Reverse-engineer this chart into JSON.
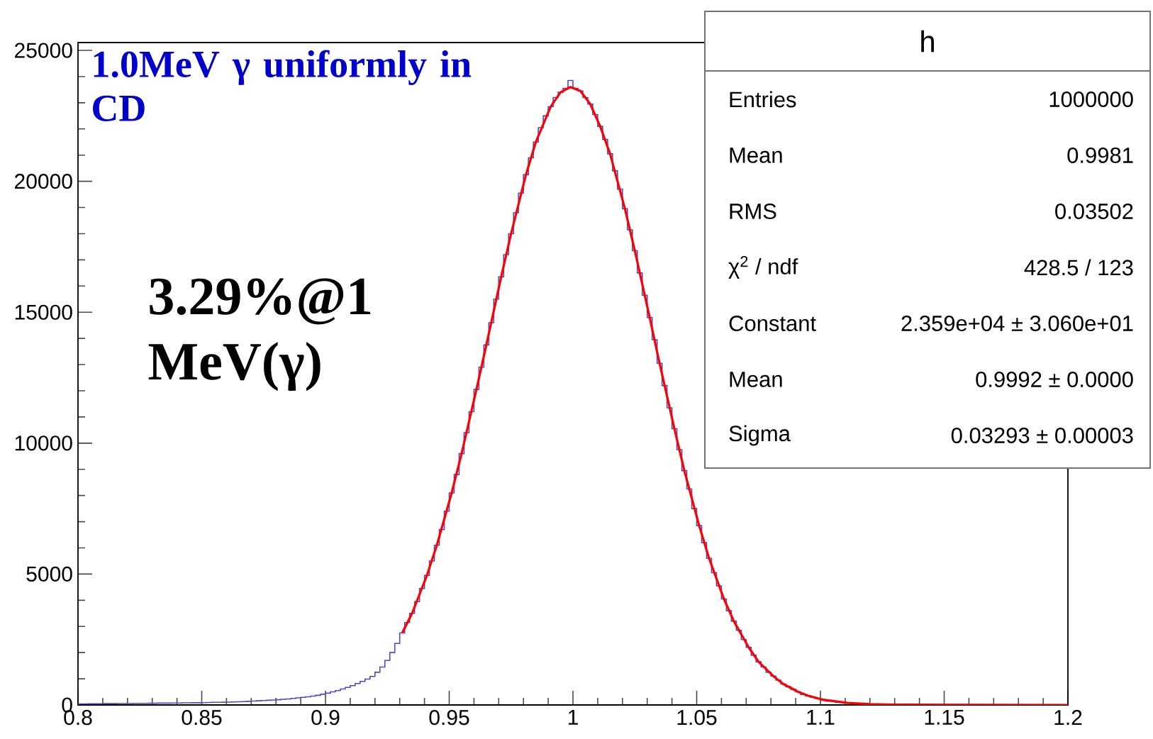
{
  "chart_data": {
    "type": "histogram",
    "title": "1.0MeV γ uniformly in CD",
    "color": "#4b4bc4",
    "bins": [
      0.8,
      0.802,
      0.804,
      0.806,
      0.808,
      0.81,
      0.812,
      0.814,
      0.816,
      0.818,
      0.82,
      0.822,
      0.824,
      0.826,
      0.828,
      0.83,
      0.832,
      0.834,
      0.836,
      0.838,
      0.84,
      0.842,
      0.844,
      0.846,
      0.848,
      0.85,
      0.852,
      0.854,
      0.856,
      0.858,
      0.86,
      0.862,
      0.864,
      0.866,
      0.868,
      0.87,
      0.872,
      0.874,
      0.876,
      0.878,
      0.88,
      0.882,
      0.884,
      0.886,
      0.888,
      0.89,
      0.892,
      0.894,
      0.896,
      0.898,
      0.9,
      0.902,
      0.904,
      0.906,
      0.908,
      0.91,
      0.912,
      0.914,
      0.916,
      0.918,
      0.92,
      0.922,
      0.924,
      0.926,
      0.928,
      0.93,
      0.932,
      0.934,
      0.936,
      0.938,
      0.94,
      0.942,
      0.944,
      0.946,
      0.948,
      0.95,
      0.952,
      0.954,
      0.956,
      0.958,
      0.96,
      0.962,
      0.964,
      0.966,
      0.968,
      0.97,
      0.972,
      0.974,
      0.976,
      0.978,
      0.98,
      0.982,
      0.984,
      0.986,
      0.988,
      0.99,
      0.992,
      0.994,
      0.996,
      0.998,
      1.0,
      1.002,
      1.004,
      1.006,
      1.008,
      1.01,
      1.012,
      1.014,
      1.016,
      1.018,
      1.02,
      1.022,
      1.024,
      1.026,
      1.028,
      1.03,
      1.032,
      1.034,
      1.036,
      1.038,
      1.04,
      1.042,
      1.044,
      1.046,
      1.048,
      1.05,
      1.052,
      1.054,
      1.056,
      1.058,
      1.06,
      1.062,
      1.064,
      1.066,
      1.068,
      1.07,
      1.072,
      1.074,
      1.076,
      1.078,
      1.08,
      1.082,
      1.084,
      1.086,
      1.088,
      1.09,
      1.092,
      1.094,
      1.096,
      1.098,
      1.1,
      1.102,
      1.104,
      1.106,
      1.108,
      1.11,
      1.112,
      1.114,
      1.116,
      1.118,
      1.12,
      1.122,
      1.124,
      1.126,
      1.128,
      1.13,
      1.132,
      1.134,
      1.136,
      1.138,
      1.14,
      1.142,
      1.144,
      1.146,
      1.148,
      1.15,
      1.152,
      1.154,
      1.156,
      1.158,
      1.16,
      1.162,
      1.164,
      1.166,
      1.168,
      1.17,
      1.172,
      1.174,
      1.176,
      1.178,
      1.18,
      1.182,
      1.184,
      1.186,
      1.188,
      1.19,
      1.192,
      1.194,
      1.196,
      1.198,
      1.2
    ],
    "values": [
      40,
      40,
      45,
      45,
      45,
      50,
      50,
      50,
      55,
      55,
      55,
      60,
      60,
      60,
      65,
      65,
      70,
      70,
      70,
      75,
      75,
      80,
      80,
      85,
      85,
      90,
      95,
      100,
      100,
      105,
      110,
      115,
      120,
      130,
      140,
      150,
      160,
      170,
      180,
      190,
      200,
      215,
      230,
      250,
      270,
      290,
      310,
      340,
      370,
      410,
      450,
      500,
      550,
      610,
      670,
      740,
      820,
      900,
      990,
      1090,
      1250,
      1450,
      1700,
      2000,
      2350,
      2750,
      3150,
      3500,
      3950,
      4450,
      4950,
      5500,
      6100,
      6700,
      7400,
      8100,
      8800,
      9600,
      10400,
      11200,
      12050,
      12900,
      13750,
      14600,
      15500,
      16350,
      17200,
      18000,
      18800,
      19550,
      20250,
      20900,
      21500,
      22050,
      22500,
      22850,
      23200,
      23400,
      23550,
      23850,
      23550,
      23450,
      23200,
      22950,
      22550,
      22100,
      21600,
      21050,
      20400,
      19700,
      18950,
      18150,
      17350,
      16500,
      15650,
      14800,
      13950,
      13050,
      12200,
      11350,
      10550,
      9750,
      8950,
      8250,
      7500,
      6850,
      6200,
      5600,
      5050,
      4550,
      4050,
      3600,
      3200,
      2850,
      2500,
      2200,
      1900,
      1650,
      1450,
      1250,
      1100,
      950,
      800,
      700,
      600,
      500,
      400,
      350,
      300,
      250,
      200,
      150,
      150,
      100,
      100,
      80,
      60,
      50,
      40,
      30,
      25,
      20,
      15,
      10,
      10,
      5,
      5,
      5,
      5,
      0,
      0,
      0,
      0,
      0,
      0,
      0,
      0,
      0,
      0,
      0,
      0,
      0,
      0,
      0,
      0,
      0,
      0,
      0,
      0,
      0,
      0,
      0,
      0,
      0,
      0,
      0,
      0,
      0,
      0,
      0
    ],
    "series": [
      {
        "type": "line",
        "color": "#ff0000",
        "x": [
          0.931,
          0.935,
          0.941,
          0.945,
          0.951,
          0.955,
          0.961,
          0.965,
          0.971,
          0.975,
          0.981,
          0.985,
          0.991,
          0.995,
          0.999,
          1.003,
          1.007,
          1.011,
          1.015,
          1.021,
          1.025,
          1.031,
          1.035,
          1.041,
          1.045,
          1.051,
          1.055,
          1.061,
          1.065,
          1.071,
          1.075,
          1.081,
          1.085,
          1.091,
          1.095,
          1.101,
          1.105,
          1.111,
          1.12,
          1.13,
          1.2
        ],
        "values": [
          2750,
          3500,
          4950,
          6100,
          8100,
          9600,
          12050,
          13750,
          16350,
          18000,
          20250,
          21500,
          22850,
          23400,
          23600,
          23450,
          22950,
          22100,
          21050,
          18950,
          17350,
          14800,
          13050,
          10550,
          8950,
          6850,
          5600,
          4050,
          3200,
          2200,
          1650,
          1100,
          800,
          500,
          350,
          200,
          150,
          80,
          30,
          10,
          0
        ]
      }
    ],
    "xlim": [
      0.8,
      1.2
    ],
    "ylim": [
      0,
      25300
    ],
    "xticks": [
      0.8,
      0.85,
      0.9,
      0.95,
      1,
      1.05,
      1.1,
      1.15,
      1.2
    ],
    "yticks": [
      0,
      5000,
      10000,
      15000,
      20000,
      25000
    ],
    "annotations": [
      "3.29%@1 MeV(γ)",
      "h",
      "Entries",
      "1000000",
      "Mean",
      "0.9981",
      "RMS",
      "0.03502",
      "χ$^{2}$ / ndf",
      "428.5 / 123",
      "Constant",
      "2.359e+04 ± 3.060e+01",
      "Mean",
      "0.9992 ± 0.0000",
      "Sigma",
      "0.03293 ± 0.00003"
    ]
  }
}
